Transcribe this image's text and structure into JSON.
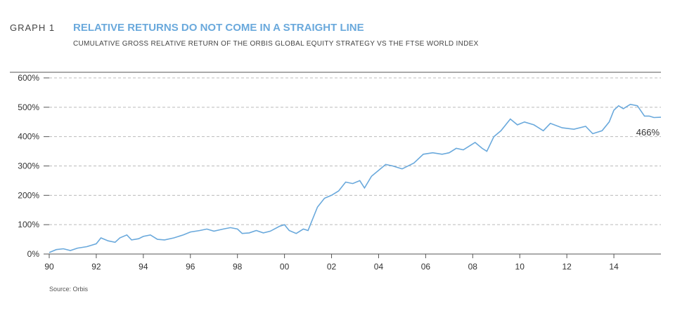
{
  "chart_data": {
    "type": "line",
    "label": "GRAPH 1",
    "title": "RELATIVE RETURNS DO NOT COME IN A STRAIGHT LINE",
    "subtitle": "CUMULATIVE GROSS RELATIVE RETURN OF THE ORBIS GLOBAL EQUITY STRATEGY VS THE FTSE WORLD INDEX",
    "source": "Source: Orbis",
    "annotation": "466%",
    "color": "#6aa9dc",
    "grid": true,
    "xlim": [
      1990,
      2016
    ],
    "ylim": [
      0,
      600
    ],
    "xticks": [
      {
        "value": 1990,
        "label": "90"
      },
      {
        "value": 1992,
        "label": "92"
      },
      {
        "value": 1994,
        "label": "94"
      },
      {
        "value": 1996,
        "label": "96"
      },
      {
        "value": 1998,
        "label": "98"
      },
      {
        "value": 2000,
        "label": "00"
      },
      {
        "value": 2002,
        "label": "02"
      },
      {
        "value": 2004,
        "label": "04"
      },
      {
        "value": 2006,
        "label": "06"
      },
      {
        "value": 2008,
        "label": "08"
      },
      {
        "value": 2010,
        "label": "10"
      },
      {
        "value": 2012,
        "label": "12"
      },
      {
        "value": 2014,
        "label": "14"
      }
    ],
    "yticks": [
      {
        "value": 0,
        "label": "0%"
      },
      {
        "value": 100,
        "label": "100%"
      },
      {
        "value": 200,
        "label": "200%"
      },
      {
        "value": 300,
        "label": "300%"
      },
      {
        "value": 400,
        "label": "400%"
      },
      {
        "value": 500,
        "label": "500%"
      },
      {
        "value": 600,
        "label": "600%"
      }
    ],
    "x": [
      1990,
      1990.3,
      1990.6,
      1990.9,
      1991.2,
      1991.6,
      1992.0,
      1992.2,
      1992.5,
      1992.8,
      1993.0,
      1993.3,
      1993.5,
      1993.8,
      1994.0,
      1994.3,
      1994.6,
      1994.9,
      1995.3,
      1995.7,
      1996.0,
      1996.4,
      1996.7,
      1997.0,
      1997.4,
      1997.7,
      1998.0,
      1998.2,
      1998.5,
      1998.8,
      1999.1,
      1999.4,
      1999.8,
      2000.0,
      2000.2,
      2000.5,
      2000.8,
      2001.0,
      2001.1,
      2001.4,
      2001.7,
      2002.0,
      2002.3,
      2002.6,
      2002.9,
      2003.2,
      2003.4,
      2003.7,
      2004.0,
      2004.3,
      2004.6,
      2005.0,
      2005.5,
      2005.9,
      2006.3,
      2006.7,
      2007.0,
      2007.3,
      2007.6,
      2007.9,
      2008.1,
      2008.4,
      2008.6,
      2008.9,
      2009.2,
      2009.6,
      2009.9,
      2010.2,
      2010.6,
      2011.0,
      2011.3,
      2011.8,
      2012.3,
      2012.8,
      2013.1,
      2013.5,
      2013.8,
      2014.0,
      2014.2,
      2014.4,
      2014.7,
      2015.0,
      2015.3,
      2015.5,
      2015.7,
      2016.0
    ],
    "values": [
      5,
      15,
      18,
      12,
      20,
      25,
      35,
      55,
      45,
      40,
      55,
      65,
      48,
      52,
      60,
      65,
      50,
      48,
      55,
      65,
      75,
      80,
      85,
      78,
      85,
      90,
      85,
      70,
      72,
      80,
      72,
      78,
      95,
      100,
      80,
      70,
      85,
      80,
      100,
      160,
      190,
      200,
      215,
      245,
      240,
      250,
      225,
      265,
      285,
      305,
      300,
      290,
      310,
      340,
      345,
      340,
      345,
      360,
      355,
      370,
      380,
      360,
      350,
      400,
      420,
      460,
      440,
      450,
      440,
      420,
      445,
      430,
      425,
      435,
      410,
      420,
      450,
      490,
      505,
      495,
      510,
      505,
      470,
      470,
      465,
      466
    ]
  }
}
